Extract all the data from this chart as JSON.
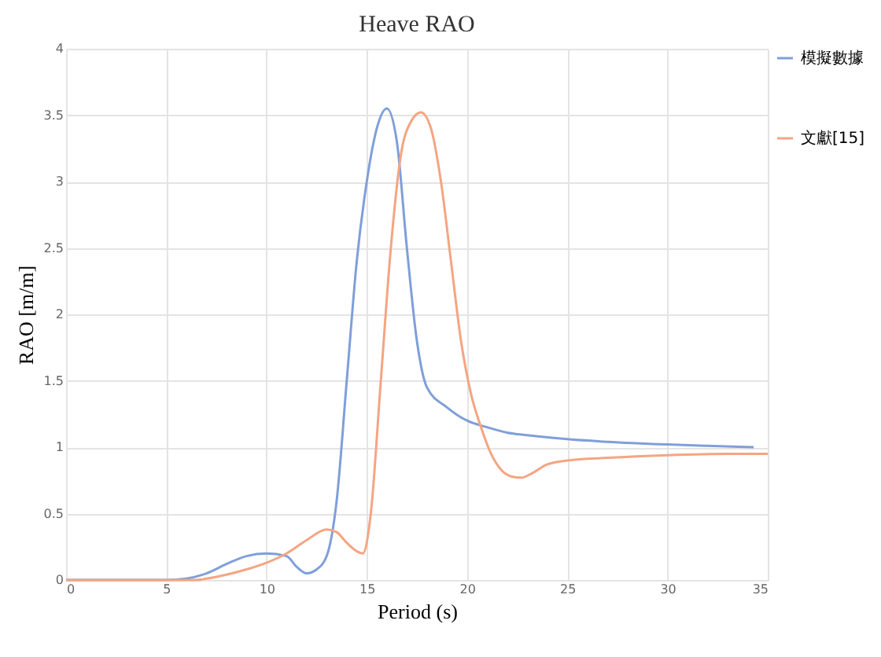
{
  "chart_data": {
    "type": "line",
    "title": "Heave RAO",
    "xlabel": "Period (s)",
    "ylabel": "RAO [m/m]",
    "xlim": [
      0,
      35
    ],
    "xticks": [
      0,
      5,
      10,
      15,
      20,
      25,
      30,
      35
    ],
    "ylim": [
      0,
      4
    ],
    "yticks": [
      0,
      0.5,
      1,
      1.5,
      2,
      2.5,
      3,
      3.5,
      4
    ],
    "grid": true,
    "legend": "right",
    "marker": "none",
    "line_style": "solid",
    "series": [
      {
        "name": "模擬數據",
        "color": "#7f9fd9",
        "x": [
          0,
          5,
          6,
          7,
          8,
          9,
          10,
          11,
          11.5,
          12,
          12.5,
          13,
          13.5,
          14,
          14.5,
          15,
          15.5,
          16,
          16.5,
          17,
          17.5,
          18,
          19,
          20,
          21,
          22,
          23,
          25,
          27,
          30,
          32,
          34.3
        ],
        "values": [
          0,
          0,
          0.01,
          0.05,
          0.12,
          0.18,
          0.2,
          0.18,
          0.1,
          0.05,
          0.08,
          0.18,
          0.6,
          1.5,
          2.4,
          3.0,
          3.4,
          3.55,
          3.3,
          2.5,
          1.8,
          1.45,
          1.3,
          1.2,
          1.15,
          1.11,
          1.09,
          1.06,
          1.04,
          1.02,
          1.01,
          1.0
        ]
      },
      {
        "name": "文獻[15]",
        "color": "#f4a582",
        "x": [
          0,
          6.5,
          7,
          8,
          9,
          10,
          11,
          12,
          13,
          13.5,
          14,
          14.8,
          15.2,
          15.7,
          16.2,
          16.7,
          17.2,
          17.7,
          18.2,
          18.7,
          19.2,
          19.7,
          20.2,
          20.7,
          21.2,
          21.7,
          22.2,
          22.7,
          23.2,
          24,
          25,
          27,
          30,
          33,
          35
        ],
        "values": [
          0,
          0,
          0.01,
          0.04,
          0.08,
          0.13,
          0.2,
          0.3,
          0.38,
          0.36,
          0.28,
          0.2,
          0.5,
          1.5,
          2.5,
          3.2,
          3.45,
          3.52,
          3.4,
          3.0,
          2.4,
          1.8,
          1.4,
          1.15,
          0.95,
          0.83,
          0.78,
          0.77,
          0.8,
          0.87,
          0.9,
          0.92,
          0.94,
          0.95,
          0.95
        ]
      }
    ]
  }
}
